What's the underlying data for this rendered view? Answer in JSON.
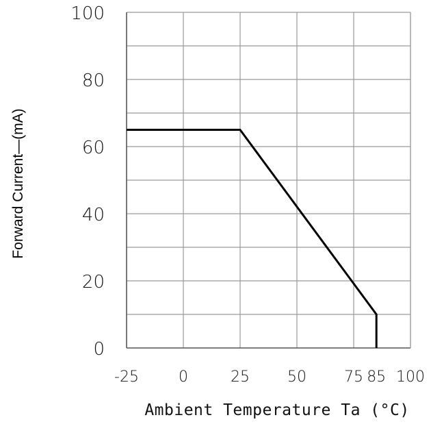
{
  "chart_data": {
    "type": "line",
    "title": "",
    "xlabel": "Ambient Temperature Ta (°C)",
    "ylabel": "Forward Current—(mA)",
    "x_ticks": [
      "-25",
      "0",
      "25",
      "50",
      "75",
      "85",
      "100"
    ],
    "x_tick_values": [
      -25,
      0,
      25,
      50,
      75,
      85,
      100
    ],
    "y_ticks": [
      "0",
      "20",
      "40",
      "60",
      "80",
      "100"
    ],
    "y_tick_values": [
      0,
      20,
      40,
      60,
      80,
      100
    ],
    "xlim": [
      -25,
      100
    ],
    "ylim": [
      0,
      100
    ],
    "grid": true,
    "x_gridlines": [
      0,
      25,
      50,
      75,
      100
    ],
    "y_gridlines": [
      10,
      20,
      30,
      40,
      50,
      60,
      70,
      80,
      90,
      100
    ],
    "series": [
      {
        "x": [
          -25,
          25,
          85,
          85
        ],
        "y": [
          65,
          65,
          10,
          0
        ]
      }
    ],
    "colors": {
      "grid": "#9a9a9a",
      "axis": "#555555",
      "line": "#000000"
    }
  }
}
